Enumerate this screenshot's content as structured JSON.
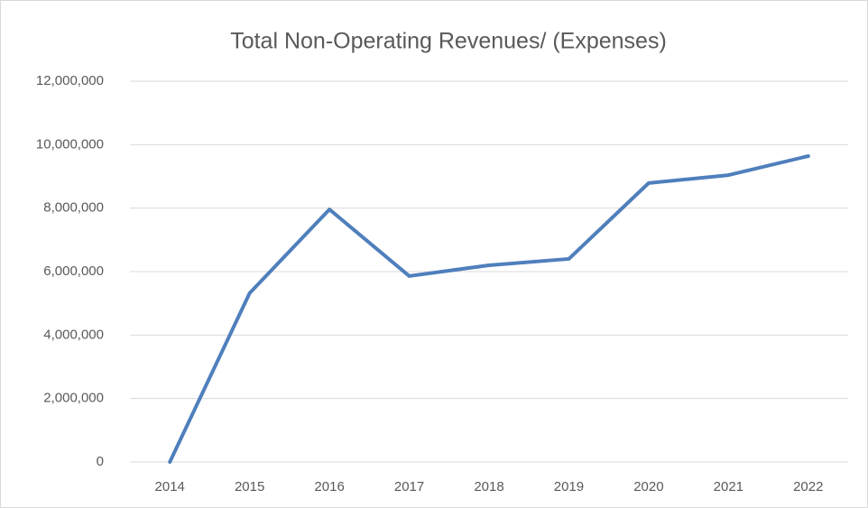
{
  "chart_data": {
    "type": "line",
    "title": "Total Non-Operating Revenues/ (Expenses)",
    "categories": [
      "2014",
      "2015",
      "2016",
      "2017",
      "2018",
      "2019",
      "2020",
      "2021",
      "2022"
    ],
    "series": [
      {
        "name": "Total Non-Operating Revenues/ (Expenses)",
        "color": "#4f7fbc",
        "values": [
          0,
          5320000,
          7960000,
          5860000,
          6200000,
          6400000,
          8790000,
          9040000,
          9640000
        ]
      }
    ],
    "ylim": [
      0,
      12000000
    ],
    "yticks": [
      0,
      {
        "value": 2000000,
        "label": "2,000,000"
      },
      {
        "value": 4000000,
        "label": "4,000,000"
      },
      {
        "value": 6000000,
        "label": "6,000,000"
      },
      {
        "value": 8000000,
        "label": "8,000,000"
      },
      {
        "value": 10000000,
        "label": "10,000,000"
      },
      {
        "value": 12000000,
        "label": "12,000,000"
      }
    ],
    "grid": true
  }
}
